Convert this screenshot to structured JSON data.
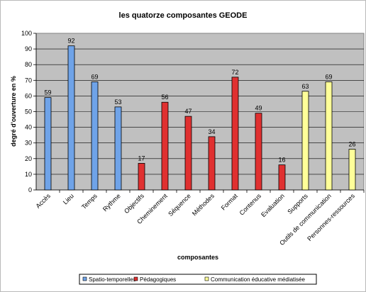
{
  "chart_data": {
    "type": "bar",
    "title": "les quatorze composantes GEODE",
    "xlabel": "composantes",
    "ylabel": "degré d'ouverture en %",
    "ylim": [
      0,
      100
    ],
    "yticks": [
      0,
      10,
      20,
      30,
      40,
      50,
      60,
      70,
      80,
      90,
      100
    ],
    "grid": "horizontal",
    "legend_position": "bottom",
    "categories": [
      "Accès",
      "Lieu",
      "Temps",
      "Rythme",
      "Objectifs",
      "Cheminement",
      "Séquence",
      "Méthodes",
      "Format",
      "Contenus",
      "Evaluation",
      "Supports",
      "Outils de communication",
      "Personnes-ressources"
    ],
    "series": [
      {
        "name": "Spatio-temporelles",
        "color": "#6fa3e8",
        "values": [
          59,
          92,
          69,
          53,
          null,
          null,
          null,
          null,
          null,
          null,
          null,
          null,
          null,
          null
        ]
      },
      {
        "name": "Pédagogiques",
        "color": "#e03030",
        "values": [
          null,
          null,
          null,
          null,
          17,
          56,
          47,
          34,
          72,
          49,
          16,
          null,
          null,
          null
        ]
      },
      {
        "name": "Communication éducative médiatisée",
        "color": "#ffff99",
        "values": [
          null,
          null,
          null,
          null,
          null,
          null,
          null,
          null,
          null,
          null,
          null,
          63,
          69,
          26
        ]
      }
    ]
  }
}
